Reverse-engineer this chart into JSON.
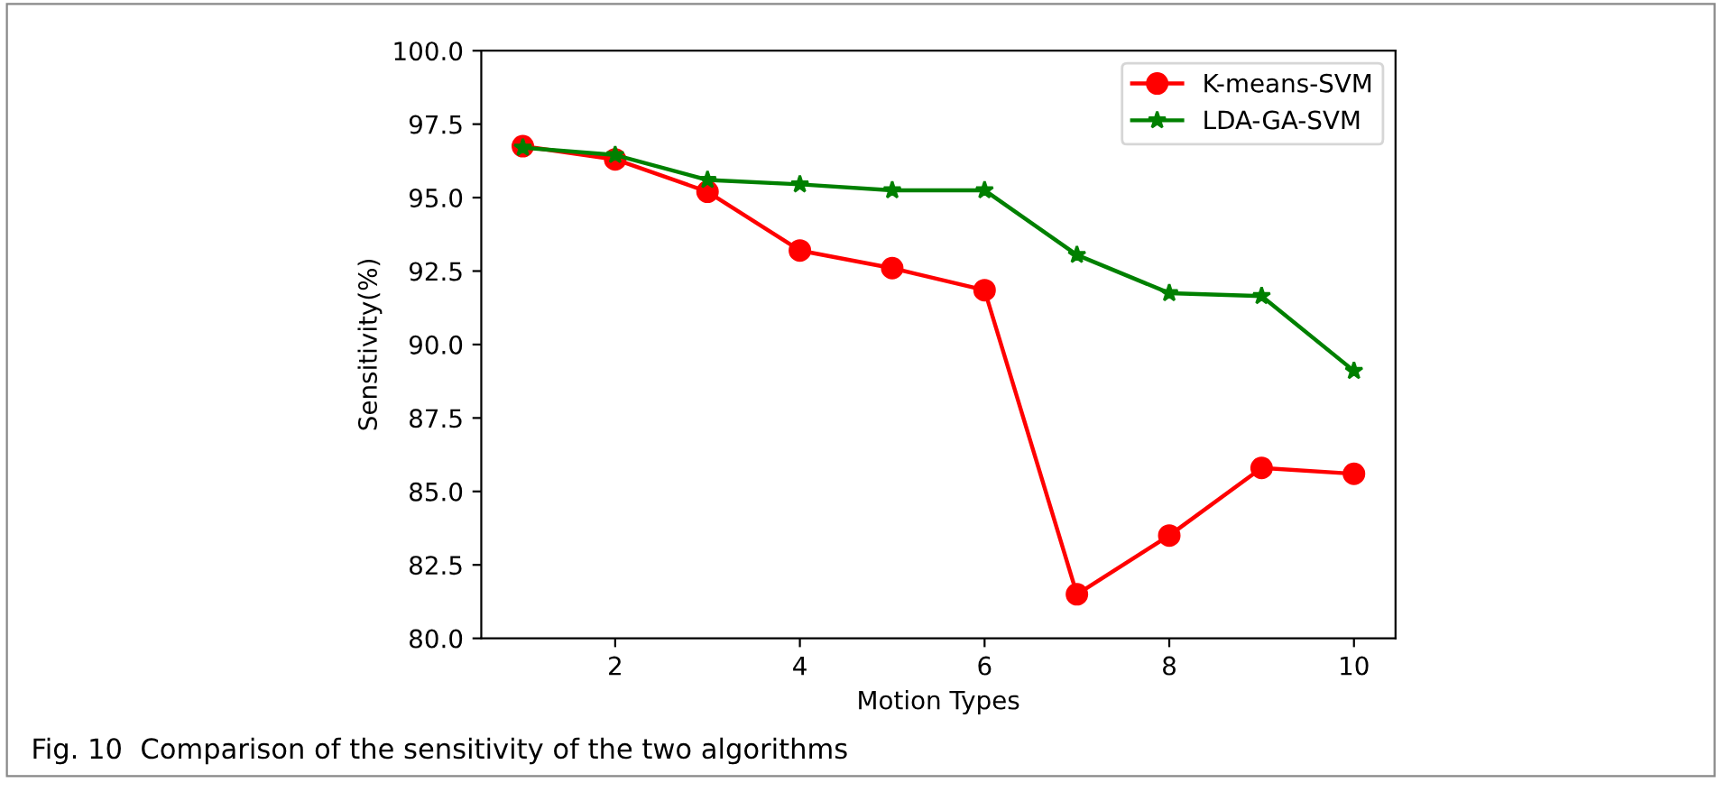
{
  "chart_data": {
    "type": "line",
    "xlabel": "Motion Types",
    "ylabel": "Sensitivity(%)",
    "x": [
      1,
      2,
      3,
      4,
      5,
      6,
      7,
      8,
      9,
      10
    ],
    "series": [
      {
        "name": "K-means-SVM",
        "color": "#ff0000",
        "marker": "circle",
        "values": [
          96.75,
          96.3,
          95.2,
          93.2,
          92.6,
          91.85,
          81.5,
          83.5,
          85.8,
          85.6
        ]
      },
      {
        "name": "LDA-GA-SVM",
        "color": "#008000",
        "marker": "star",
        "values": [
          96.7,
          96.45,
          95.6,
          95.45,
          95.25,
          95.25,
          93.05,
          91.75,
          91.65,
          89.1
        ]
      }
    ],
    "xlim": [
      0.55,
      10.45
    ],
    "xticks": [
      2,
      4,
      6,
      8,
      10
    ],
    "ylim": [
      80.0,
      100.0
    ],
    "yticks": [
      {
        "value": 80,
        "label": "80.0"
      },
      {
        "value": 82.5,
        "label": "82.5"
      },
      {
        "value": 85,
        "label": "85.0"
      },
      {
        "value": 87.5,
        "label": "87.5"
      },
      {
        "value": 90,
        "label": "90.0"
      },
      {
        "value": 92.5,
        "label": "92.5"
      },
      {
        "value": 95,
        "label": "95.0"
      },
      {
        "value": 97.5,
        "label": "97.5"
      },
      {
        "value": 100,
        "label": "100.0"
      }
    ],
    "grid": false,
    "legend": "top right",
    "line_style": "solid",
    "annotations": [
      "Fig. 10  Comparison of the sensitivity of the two algorithms"
    ]
  }
}
